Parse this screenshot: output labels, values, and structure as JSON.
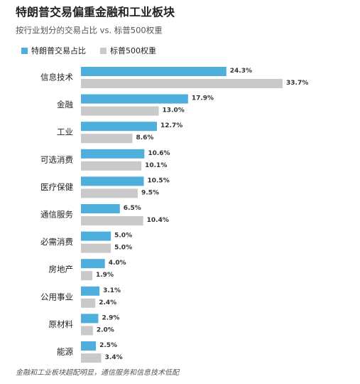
{
  "chart_data": {
    "type": "hbar",
    "title": "特朗普交易偏重金融和工业板块",
    "subtitle": "按行业划分的交易占比 vs. 标普500权重",
    "categories": [
      "信息技术",
      "金融",
      "工业",
      "可选消费",
      "医疗保健",
      "通信服务",
      "必需消费",
      "房地产",
      "公用事业",
      "原材料",
      "能源"
    ],
    "series": [
      {
        "name": "特朗普交易占比",
        "color": "#4eaedc",
        "values": [
          24.3,
          17.9,
          12.7,
          10.6,
          10.5,
          6.5,
          5.0,
          4.0,
          3.1,
          2.9,
          2.5
        ],
        "value_labels": [
          "24.3%",
          "17.9%",
          "12.7%",
          "10.6%",
          "10.5%",
          "6.5%",
          "5.0%",
          "4.0%",
          "3.1%",
          "2.9%",
          "2.5%"
        ]
      },
      {
        "name": "标普500权重",
        "color": "#c9c9c9",
        "values": [
          33.7,
          13.0,
          8.6,
          10.1,
          9.5,
          10.4,
          5.0,
          1.9,
          2.4,
          2.0,
          3.4
        ],
        "value_labels": [
          "33.7%",
          "13.0%",
          "8.6%",
          "10.1%",
          "9.5%",
          "10.4%",
          "5.0%",
          "1.9%",
          "2.4%",
          "2.0%",
          "3.4%"
        ]
      }
    ],
    "annotation": "金融和工业板块超配明显，通信服务和信息技术低配"
  }
}
